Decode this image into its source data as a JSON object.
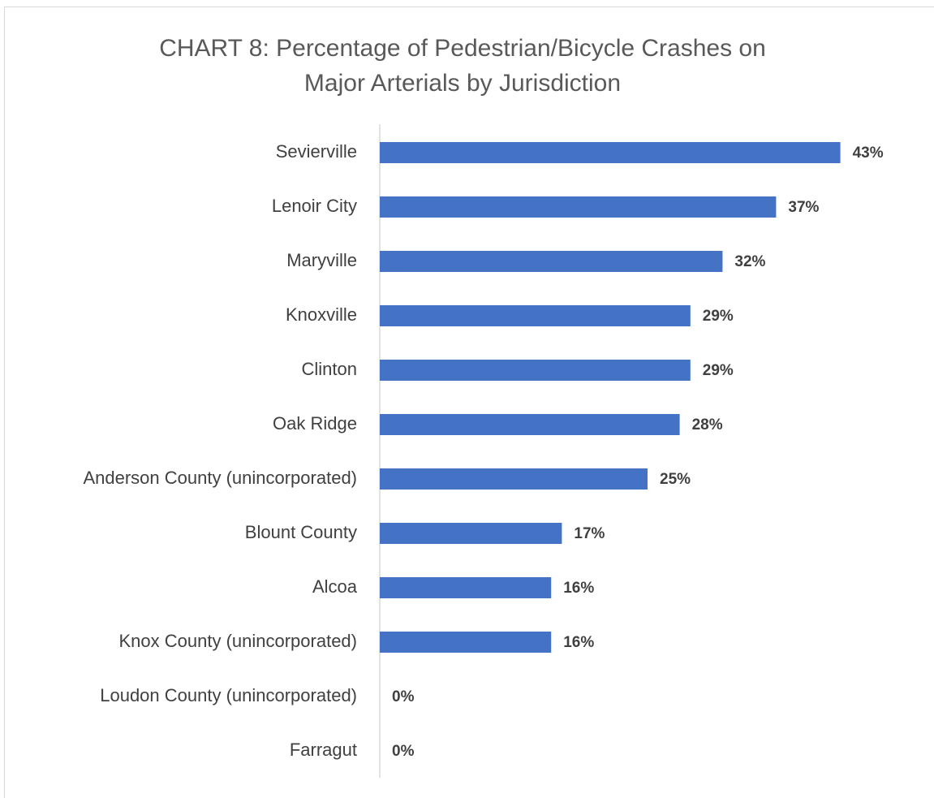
{
  "chart_data": {
    "type": "bar",
    "orientation": "horizontal",
    "title": [
      "CHART 8: Percentage of Pedestrian/Bicycle Crashes on",
      "Major Arterials by Jurisdiction"
    ],
    "categories": [
      "Sevierville",
      "Lenoir City",
      "Maryville",
      "Knoxville",
      "Clinton",
      "Oak Ridge",
      "Anderson County (unincorporated)",
      "Blount County",
      "Alcoa",
      "Knox County (unincorporated)",
      "Loudon County (unincorporated)",
      "Farragut"
    ],
    "values": [
      43,
      37,
      32,
      29,
      29,
      28,
      25,
      17,
      16,
      16,
      0,
      0
    ],
    "value_labels": [
      "43%",
      "37%",
      "32%",
      "29%",
      "29%",
      "28%",
      "25%",
      "17%",
      "16%",
      "16%",
      "0%",
      "0%"
    ],
    "color": "#4472c4",
    "xlim": [
      0,
      50
    ]
  }
}
